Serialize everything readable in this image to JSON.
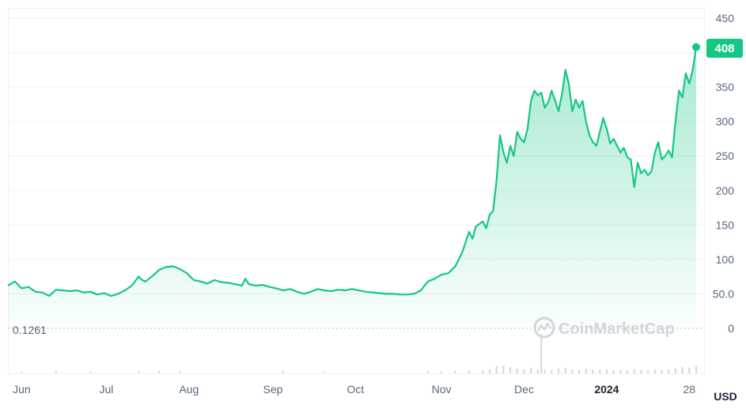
{
  "chart_data": {
    "type": "area",
    "currency": "USD",
    "y_ticks": [
      "450",
      "400",
      "350",
      "300",
      "250",
      "200",
      "150",
      "100",
      "50.0",
      "0"
    ],
    "y_tick_values": [
      450,
      400,
      350,
      300,
      250,
      200,
      150,
      100,
      50,
      0
    ],
    "ylim": [
      0,
      450
    ],
    "x_labels": [
      {
        "label": "Jun",
        "t": 0.02
      },
      {
        "label": "Jul",
        "t": 0.143
      },
      {
        "label": "Aug",
        "t": 0.263
      },
      {
        "label": "Sep",
        "t": 0.385
      },
      {
        "label": "Oct",
        "t": 0.505
      },
      {
        "label": "Nov",
        "t": 0.63
      },
      {
        "label": "Dec",
        "t": 0.75
      },
      {
        "label": "2024",
        "t": 0.87,
        "bold": true
      },
      {
        "label": "28",
        "t": 0.99
      }
    ],
    "current_price": {
      "label": "408",
      "value": 408
    },
    "baseline": {
      "label": "0.1261",
      "value": 0.1261
    },
    "watermark": "CoinMarketCap",
    "series": [
      {
        "color": "#16c784",
        "points": [
          [
            0.0,
            62
          ],
          [
            0.01,
            68
          ],
          [
            0.02,
            58
          ],
          [
            0.03,
            60
          ],
          [
            0.04,
            53
          ],
          [
            0.05,
            52
          ],
          [
            0.06,
            47
          ],
          [
            0.07,
            56
          ],
          [
            0.08,
            55
          ],
          [
            0.09,
            54
          ],
          [
            0.1,
            55
          ],
          [
            0.11,
            52
          ],
          [
            0.12,
            53
          ],
          [
            0.13,
            49
          ],
          [
            0.14,
            51
          ],
          [
            0.15,
            47
          ],
          [
            0.16,
            50
          ],
          [
            0.17,
            55
          ],
          [
            0.18,
            62
          ],
          [
            0.19,
            75
          ],
          [
            0.195,
            70
          ],
          [
            0.2,
            68
          ],
          [
            0.21,
            76
          ],
          [
            0.22,
            85
          ],
          [
            0.23,
            89
          ],
          [
            0.24,
            90
          ],
          [
            0.25,
            86
          ],
          [
            0.26,
            80
          ],
          [
            0.27,
            70
          ],
          [
            0.28,
            68
          ],
          [
            0.29,
            65
          ],
          [
            0.3,
            70
          ],
          [
            0.31,
            67
          ],
          [
            0.32,
            66
          ],
          [
            0.33,
            64
          ],
          [
            0.34,
            62
          ],
          [
            0.345,
            72
          ],
          [
            0.35,
            64
          ],
          [
            0.36,
            62
          ],
          [
            0.37,
            63
          ],
          [
            0.38,
            60
          ],
          [
            0.39,
            58
          ],
          [
            0.4,
            55
          ],
          [
            0.41,
            57
          ],
          [
            0.42,
            53
          ],
          [
            0.43,
            50
          ],
          [
            0.44,
            53
          ],
          [
            0.45,
            57
          ],
          [
            0.46,
            55
          ],
          [
            0.47,
            54
          ],
          [
            0.48,
            56
          ],
          [
            0.49,
            55
          ],
          [
            0.5,
            57
          ],
          [
            0.51,
            55
          ],
          [
            0.52,
            53
          ],
          [
            0.53,
            52
          ],
          [
            0.54,
            51
          ],
          [
            0.55,
            50
          ],
          [
            0.56,
            50
          ],
          [
            0.57,
            49
          ],
          [
            0.58,
            49
          ],
          [
            0.59,
            50
          ],
          [
            0.6,
            55
          ],
          [
            0.61,
            68
          ],
          [
            0.62,
            72
          ],
          [
            0.63,
            78
          ],
          [
            0.64,
            80
          ],
          [
            0.65,
            90
          ],
          [
            0.66,
            110
          ],
          [
            0.665,
            125
          ],
          [
            0.67,
            140
          ],
          [
            0.675,
            130
          ],
          [
            0.68,
            148
          ],
          [
            0.69,
            155
          ],
          [
            0.695,
            145
          ],
          [
            0.7,
            165
          ],
          [
            0.705,
            170
          ],
          [
            0.71,
            215
          ],
          [
            0.715,
            280
          ],
          [
            0.72,
            255
          ],
          [
            0.725,
            240
          ],
          [
            0.73,
            265
          ],
          [
            0.735,
            250
          ],
          [
            0.74,
            285
          ],
          [
            0.745,
            275
          ],
          [
            0.75,
            270
          ],
          [
            0.755,
            290
          ],
          [
            0.76,
            330
          ],
          [
            0.765,
            345
          ],
          [
            0.77,
            338
          ],
          [
            0.775,
            342
          ],
          [
            0.78,
            320
          ],
          [
            0.785,
            328
          ],
          [
            0.79,
            345
          ],
          [
            0.795,
            330
          ],
          [
            0.8,
            315
          ],
          [
            0.805,
            340
          ],
          [
            0.81,
            375
          ],
          [
            0.815,
            355
          ],
          [
            0.82,
            315
          ],
          [
            0.825,
            332
          ],
          [
            0.83,
            320
          ],
          [
            0.835,
            330
          ],
          [
            0.84,
            300
          ],
          [
            0.845,
            280
          ],
          [
            0.85,
            270
          ],
          [
            0.855,
            265
          ],
          [
            0.86,
            285
          ],
          [
            0.865,
            305
          ],
          [
            0.87,
            290
          ],
          [
            0.875,
            268
          ],
          [
            0.88,
            275
          ],
          [
            0.885,
            265
          ],
          [
            0.89,
            255
          ],
          [
            0.895,
            262
          ],
          [
            0.9,
            248
          ],
          [
            0.905,
            245
          ],
          [
            0.91,
            205
          ],
          [
            0.915,
            240
          ],
          [
            0.92,
            225
          ],
          [
            0.925,
            230
          ],
          [
            0.93,
            222
          ],
          [
            0.935,
            228
          ],
          [
            0.94,
            255
          ],
          [
            0.945,
            270
          ],
          [
            0.95,
            245
          ],
          [
            0.955,
            250
          ],
          [
            0.96,
            258
          ],
          [
            0.965,
            248
          ],
          [
            0.97,
            300
          ],
          [
            0.975,
            345
          ],
          [
            0.98,
            335
          ],
          [
            0.985,
            370
          ],
          [
            0.99,
            355
          ],
          [
            0.995,
            375
          ],
          [
            1.0,
            408
          ]
        ]
      }
    ],
    "volume_bars": [
      [
        0.02,
        0.2
      ],
      [
        0.07,
        0.3
      ],
      [
        0.12,
        0.2
      ],
      [
        0.19,
        0.25
      ],
      [
        0.22,
        0.3
      ],
      [
        0.25,
        0.25
      ],
      [
        0.4,
        0.3
      ],
      [
        0.46,
        0.15
      ],
      [
        0.61,
        0.3
      ],
      [
        0.63,
        0.25
      ],
      [
        0.65,
        0.3
      ],
      [
        0.67,
        0.35
      ],
      [
        0.69,
        0.4
      ],
      [
        0.7,
        0.5
      ],
      [
        0.71,
        0.9
      ],
      [
        0.72,
        1.0
      ],
      [
        0.73,
        0.8
      ],
      [
        0.74,
        0.6
      ],
      [
        0.75,
        0.55
      ],
      [
        0.76,
        0.7
      ],
      [
        0.77,
        0.5
      ],
      [
        0.775,
        5.0
      ],
      [
        0.78,
        0.55
      ],
      [
        0.79,
        0.45
      ],
      [
        0.8,
        0.6
      ],
      [
        0.81,
        0.7
      ],
      [
        0.82,
        0.5
      ],
      [
        0.83,
        0.45
      ],
      [
        0.84,
        0.6
      ],
      [
        0.85,
        0.5
      ],
      [
        0.86,
        0.45
      ],
      [
        0.87,
        0.5
      ],
      [
        0.88,
        0.4
      ],
      [
        0.89,
        0.45
      ],
      [
        0.9,
        0.4
      ],
      [
        0.91,
        0.55
      ],
      [
        0.92,
        0.45
      ],
      [
        0.93,
        0.4
      ],
      [
        0.94,
        0.5
      ],
      [
        0.95,
        0.45
      ],
      [
        0.96,
        0.5
      ],
      [
        0.97,
        0.6
      ],
      [
        0.98,
        0.8
      ],
      [
        0.99,
        0.7
      ],
      [
        1.0,
        0.9
      ]
    ]
  }
}
